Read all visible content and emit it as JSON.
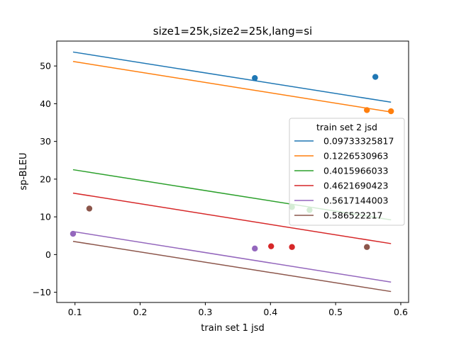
{
  "chart_data": {
    "type": "scatter",
    "title": "size1=25k,size2=25k,lang=si",
    "xlabel": "train set 1 jsd",
    "ylabel": "sp-BLEU",
    "xlim": [
      0.072,
      0.612
    ],
    "ylim": [
      -12.7,
      56.6
    ],
    "xticks": [
      0.1,
      0.2,
      0.3,
      0.4,
      0.5,
      0.6
    ],
    "xtick_labels": [
      "0.1",
      "0.2",
      "0.3",
      "0.4",
      "0.5",
      "0.6"
    ],
    "yticks": [
      -10,
      0,
      10,
      20,
      30,
      40,
      50
    ],
    "ytick_labels": [
      "−10",
      "0",
      "10",
      "20",
      "30",
      "40",
      "50"
    ],
    "grid": false,
    "legend": {
      "title": "train set 2 jsd",
      "placement": "right"
    },
    "series": [
      {
        "name": "0.09733325817",
        "color": "#1f77b4",
        "points": [
          [
            0.376,
            46.8
          ],
          [
            0.561,
            47.1
          ]
        ],
        "fit": [
          [
            0.097,
            53.7
          ],
          [
            0.585,
            40.4
          ]
        ]
      },
      {
        "name": "0.1226530963",
        "color": "#ff7f0e",
        "points": [
          [
            0.548,
            38.3
          ],
          [
            0.585,
            38.0
          ]
        ],
        "fit": [
          [
            0.097,
            51.2
          ],
          [
            0.585,
            37.8
          ]
        ]
      },
      {
        "name": "0.4015966033",
        "color": "#2ca02c",
        "points": [
          [
            0.433,
            12.6
          ],
          [
            0.46,
            11.8
          ]
        ],
        "fit": [
          [
            0.097,
            22.5
          ],
          [
            0.585,
            9.2
          ]
        ]
      },
      {
        "name": "0.4621690423",
        "color": "#d62728",
        "points": [
          [
            0.401,
            2.2
          ],
          [
            0.433,
            2.0
          ]
        ],
        "fit": [
          [
            0.097,
            16.3
          ],
          [
            0.585,
            2.9
          ]
        ]
      },
      {
        "name": "0.5617144003",
        "color": "#9467bd",
        "points": [
          [
            0.097,
            5.5
          ],
          [
            0.376,
            1.6
          ]
        ],
        "fit": [
          [
            0.097,
            6.1
          ],
          [
            0.585,
            -7.3
          ]
        ]
      },
      {
        "name": "0.586522217",
        "color": "#8c564b",
        "points": [
          [
            0.122,
            12.2
          ],
          [
            0.548,
            2.0
          ]
        ],
        "fit": [
          [
            0.097,
            3.5
          ],
          [
            0.585,
            -9.8
          ]
        ]
      }
    ]
  }
}
